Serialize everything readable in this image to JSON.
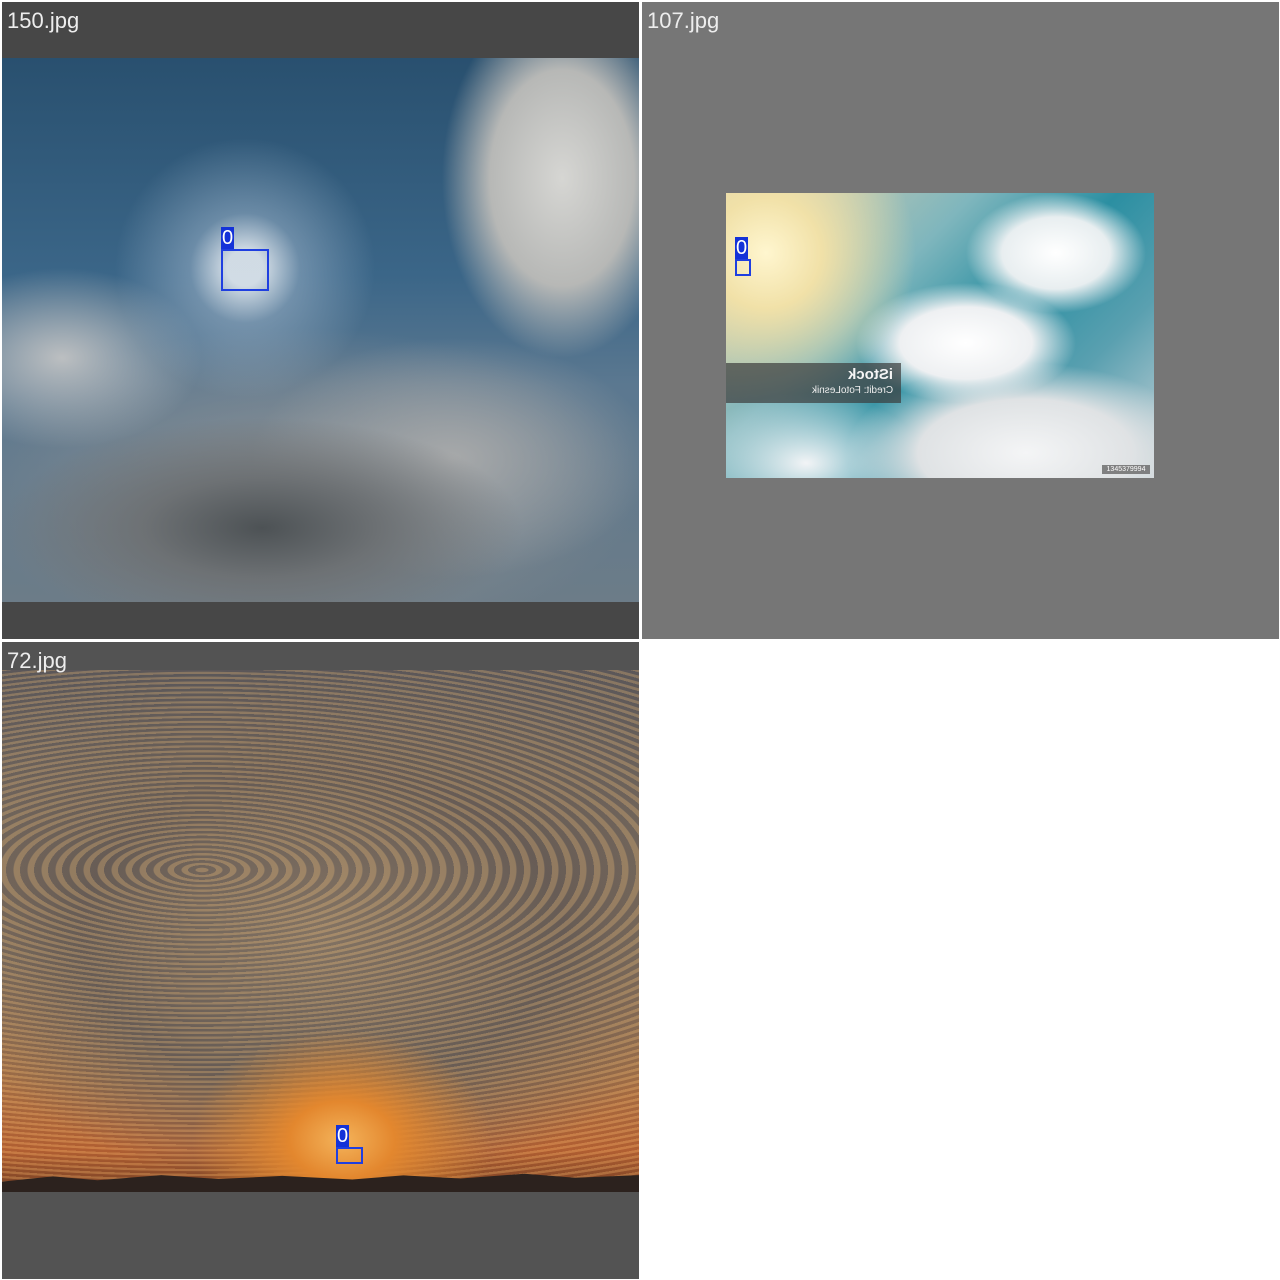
{
  "tiles": [
    {
      "filename": "150.jpg",
      "detections": [
        {
          "class_label": "0"
        }
      ]
    },
    {
      "filename": "107.jpg",
      "detections": [
        {
          "class_label": "0"
        }
      ],
      "watermark": {
        "brand": "iStock",
        "credit": "Credit: FotoLesnik",
        "image_id": "1345379994"
      }
    },
    {
      "filename": "72.jpg",
      "detections": [
        {
          "class_label": "0"
        }
      ]
    }
  ],
  "colors": {
    "bbox": "#1f3fe0",
    "tag_background": "#1432d8",
    "tile_background": "#767676"
  }
}
